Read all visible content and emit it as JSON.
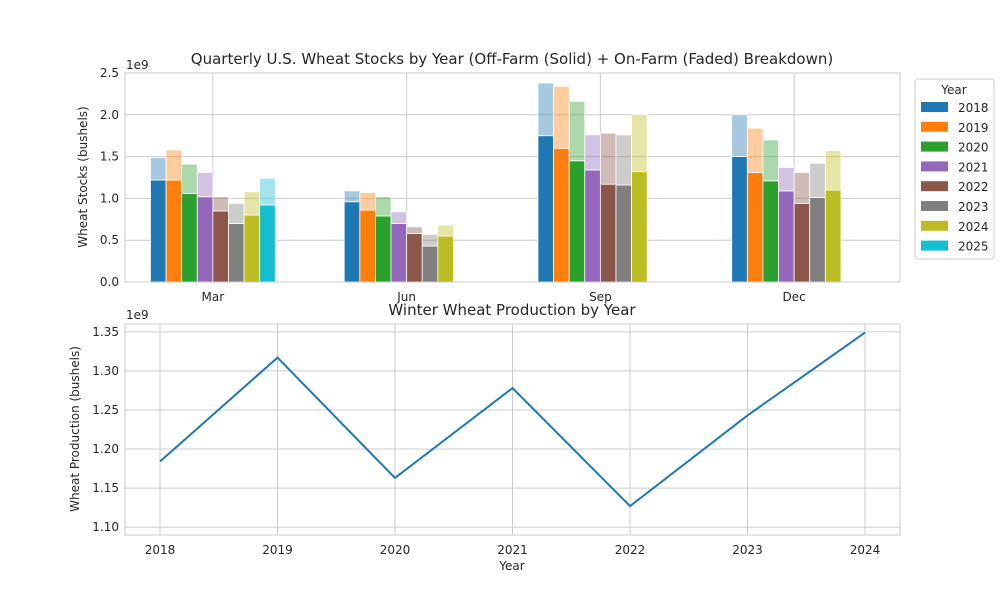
{
  "chart_data": [
    {
      "type": "bar",
      "stacked_breakdown": true,
      "title": "Quarterly U.S. Wheat Stocks by Year (Off-Farm (Solid) + On-Farm (Faded) Breakdown)",
      "xlabel": "",
      "ylabel": "Wheat Stocks (bushels)",
      "y_offset_text": "1e9",
      "ylim": [
        0,
        2.5
      ],
      "yticks": [
        "0.0",
        "0.5",
        "1.0",
        "1.5",
        "2.0",
        "2.5"
      ],
      "categories": [
        "Mar",
        "Jun",
        "Sep",
        "Dec"
      ],
      "legend_title": "Year",
      "legend_position": "outside right",
      "series": [
        {
          "name": "2018",
          "color": "#1f77b4",
          "off_farm": [
            1.22,
            0.96,
            1.75,
            1.5
          ],
          "total": [
            1.49,
            1.09,
            2.38,
            2.0
          ]
        },
        {
          "name": "2019",
          "color": "#ff7f0e",
          "off_farm": [
            1.22,
            0.86,
            1.6,
            1.31
          ],
          "total": [
            1.58,
            1.07,
            2.34,
            1.84
          ]
        },
        {
          "name": "2020",
          "color": "#2ca02c",
          "off_farm": [
            1.06,
            0.79,
            1.45,
            1.21
          ],
          "total": [
            1.41,
            1.02,
            2.16,
            1.7
          ]
        },
        {
          "name": "2021",
          "color": "#9467bd",
          "off_farm": [
            1.02,
            0.7,
            1.34,
            1.09
          ],
          "total": [
            1.31,
            0.84,
            1.76,
            1.37
          ]
        },
        {
          "name": "2022",
          "color": "#8c564b",
          "off_farm": [
            0.85,
            0.58,
            1.17,
            0.94
          ],
          "total": [
            1.02,
            0.66,
            1.78,
            1.31
          ]
        },
        {
          "name": "2023",
          "color": "#7f7f7f",
          "off_farm": [
            0.7,
            0.43,
            1.16,
            1.01
          ],
          "total": [
            0.94,
            0.57,
            1.76,
            1.42
          ]
        },
        {
          "name": "2024",
          "color": "#bcbd22",
          "off_farm": [
            0.8,
            0.55,
            1.32,
            1.1
          ],
          "total": [
            1.08,
            0.68,
            2.0,
            1.57
          ]
        },
        {
          "name": "2025",
          "color": "#17becf",
          "off_farm": [
            0.92,
            null,
            null,
            null
          ],
          "total": [
            1.24,
            null,
            null,
            null
          ]
        }
      ]
    },
    {
      "type": "line",
      "title": "Winter Wheat Production by Year",
      "xlabel": "Year",
      "ylabel": "Wheat Production (bushels)",
      "y_offset_text": "1e9",
      "ylim": [
        1.09,
        1.36
      ],
      "yticks": [
        "1.10",
        "1.15",
        "1.20",
        "1.25",
        "1.30",
        "1.35"
      ],
      "x": [
        "2018",
        "2019",
        "2020",
        "2021",
        "2022",
        "2023",
        "2024"
      ],
      "series": [
        {
          "name": "Winter Wheat Production",
          "color": "#1f77b4",
          "values": [
            1.184,
            1.317,
            1.163,
            1.278,
            1.127,
            1.243,
            1.349
          ]
        }
      ]
    }
  ]
}
